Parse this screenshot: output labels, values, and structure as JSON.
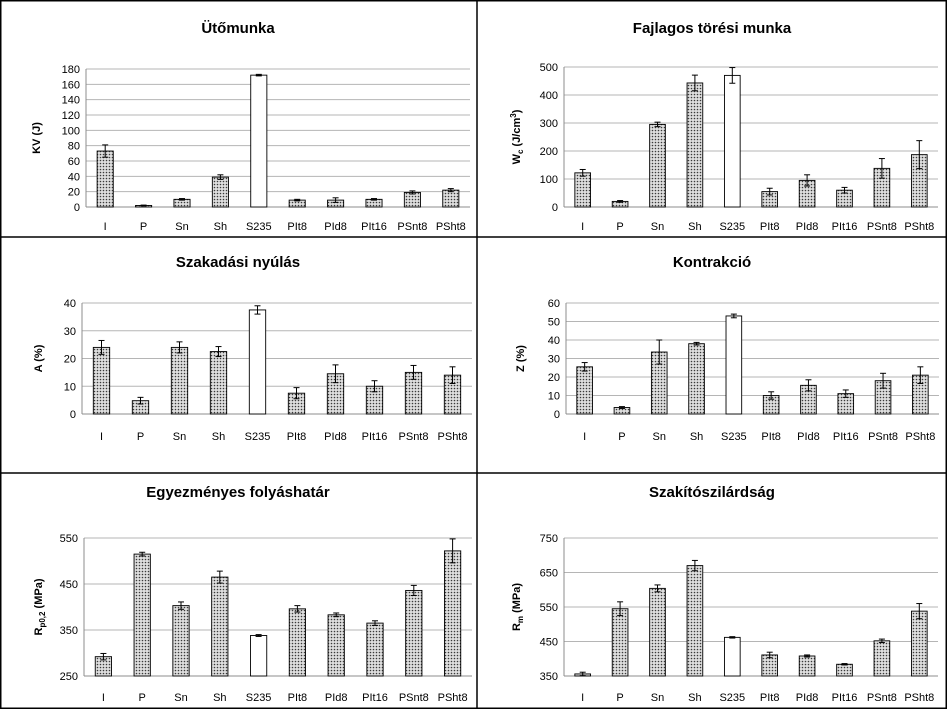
{
  "colors": {
    "dotted_bar_background": "#dedede",
    "dotted_bar_dots": "#3a3a3a",
    "plain_bar": "#ffffff",
    "bar_outline": "#000000",
    "gridline": "#b5b5b5",
    "axis": "#8c8c8c",
    "panel_border": "#000000"
  },
  "chart_data": [
    {
      "type": "bar",
      "title": "Ütőmunka",
      "ylabel": [
        {
          "t": "KV (J)"
        }
      ],
      "categories": [
        "I",
        "P",
        "Sn",
        "Sh",
        "S235",
        "PIt8",
        "PId8",
        "PIt16",
        "PSnt8",
        "PSht8"
      ],
      "values": [
        73,
        2,
        10,
        39,
        172,
        9,
        9,
        10,
        19,
        22
      ],
      "errors": [
        8,
        0.5,
        1,
        3,
        1,
        1,
        3,
        1,
        2,
        2
      ],
      "bar_colors": [
        "#c8c8c8",
        "#c8c8c8",
        "#c8c8c8",
        "#c8c8c8",
        "#ffffff",
        "#c8c8c8",
        "#c8c8c8",
        "#c8c8c8",
        "#c8c8c8",
        "#c8c8c8"
      ],
      "ylim": [
        0,
        180
      ],
      "yticks": [
        0,
        20,
        40,
        60,
        80,
        100,
        120,
        140,
        160,
        180
      ],
      "grid": true
    },
    {
      "type": "bar",
      "title": "Fajlagos törési munka",
      "ylabel": [
        {
          "t": "W"
        },
        {
          "t": "c",
          "sub": true
        },
        {
          "t": " (J/cm"
        },
        {
          "t": "3",
          "sup": true
        },
        {
          "t": ")"
        }
      ],
      "categories": [
        "I",
        "P",
        "Sn",
        "Sh",
        "S235",
        "PIt8",
        "PId8",
        "PIt16",
        "PSnt8",
        "PSht8"
      ],
      "values": [
        122,
        20,
        295,
        443,
        470,
        55,
        95,
        60,
        138,
        187
      ],
      "errors": [
        12,
        3,
        8,
        28,
        28,
        12,
        20,
        10,
        35,
        50
      ],
      "bar_colors": [
        "#c8c8c8",
        "#c8c8c8",
        "#c8c8c8",
        "#c8c8c8",
        "#ffffff",
        "#c8c8c8",
        "#c8c8c8",
        "#c8c8c8",
        "#c8c8c8",
        "#c8c8c8"
      ],
      "ylim": [
        0,
        500
      ],
      "yticks": [
        0,
        100,
        200,
        300,
        400,
        500
      ],
      "grid": true
    },
    {
      "type": "bar",
      "title": "Szakadási nyúlás",
      "ylabel": [
        {
          "t": "A (%)"
        }
      ],
      "categories": [
        "I",
        "P",
        "Sn",
        "Sh",
        "S235",
        "PIt8",
        "PId8",
        "PIt16",
        "PSnt8",
        "PSht8"
      ],
      "values": [
        24,
        4.8,
        24,
        22.5,
        37.5,
        7.5,
        14.5,
        10,
        15,
        14
      ],
      "errors": [
        2.5,
        1.2,
        2,
        1.8,
        1.5,
        2,
        3.2,
        2,
        2.5,
        3
      ],
      "bar_colors": [
        "#c8c8c8",
        "#c8c8c8",
        "#c8c8c8",
        "#c8c8c8",
        "#ffffff",
        "#c8c8c8",
        "#c8c8c8",
        "#c8c8c8",
        "#c8c8c8",
        "#c8c8c8"
      ],
      "ylim": [
        0,
        40
      ],
      "yticks": [
        0,
        10,
        20,
        30,
        40
      ],
      "grid": true
    },
    {
      "type": "bar",
      "title": "Kontrakció",
      "ylabel": [
        {
          "t": "Z (%)"
        }
      ],
      "categories": [
        "I",
        "P",
        "Sn",
        "Sh",
        "S235",
        "PIt8",
        "PId8",
        "PIt16",
        "PSnt8",
        "PSht8"
      ],
      "values": [
        25.5,
        3.5,
        33.5,
        38,
        53,
        10,
        15.5,
        11,
        18,
        21
      ],
      "errors": [
        2.3,
        0.5,
        6.5,
        0.7,
        1,
        2,
        3,
        2,
        4,
        4.5
      ],
      "bar_colors": [
        "#c8c8c8",
        "#c8c8c8",
        "#c8c8c8",
        "#c8c8c8",
        "#ffffff",
        "#c8c8c8",
        "#c8c8c8",
        "#c8c8c8",
        "#c8c8c8",
        "#c8c8c8"
      ],
      "ylim": [
        0,
        60
      ],
      "yticks": [
        0,
        10,
        20,
        30,
        40,
        50,
        60
      ],
      "grid": true
    },
    {
      "type": "bar",
      "title": "Egyezményes folyáshatár",
      "ylabel": [
        {
          "t": "R"
        },
        {
          "t": "p0,2",
          "sub": true
        },
        {
          "t": " (MPa)"
        }
      ],
      "categories": [
        "I",
        "P",
        "Sn",
        "Sh",
        "S235",
        "PIt8",
        "PId8",
        "PIt16",
        "PSnt8",
        "PSht8"
      ],
      "values": [
        292,
        515,
        403,
        465,
        338,
        396,
        383,
        365,
        436,
        522
      ],
      "errors": [
        7,
        4,
        8,
        13,
        2,
        7,
        4,
        5,
        11,
        26
      ],
      "bar_colors": [
        "#c8c8c8",
        "#c8c8c8",
        "#c8c8c8",
        "#c8c8c8",
        "#ffffff",
        "#c8c8c8",
        "#c8c8c8",
        "#c8c8c8",
        "#c8c8c8",
        "#c8c8c8"
      ],
      "ylim": [
        250,
        550
      ],
      "yticks": [
        250,
        350,
        450,
        550
      ],
      "grid": true
    },
    {
      "type": "bar",
      "title": "Szakítószilárdság",
      "ylabel": [
        {
          "t": "R"
        },
        {
          "t": "m",
          "sub": true
        },
        {
          "t": " (MPa)"
        }
      ],
      "categories": [
        "I",
        "P",
        "Sn",
        "Sh",
        "S235",
        "PIt8",
        "PId8",
        "PIt16",
        "PSnt8",
        "PSht8"
      ],
      "values": [
        356,
        545,
        604,
        670,
        462,
        411,
        408,
        384,
        452,
        538
      ],
      "errors": [
        5,
        20,
        10,
        15,
        2,
        8,
        3,
        2,
        5,
        22
      ],
      "bar_colors": [
        "#c8c8c8",
        "#c8c8c8",
        "#c8c8c8",
        "#c8c8c8",
        "#ffffff",
        "#c8c8c8",
        "#c8c8c8",
        "#c8c8c8",
        "#c8c8c8",
        "#c8c8c8"
      ],
      "ylim": [
        350,
        750
      ],
      "yticks": [
        350,
        450,
        550,
        650,
        750
      ],
      "grid": true
    }
  ]
}
